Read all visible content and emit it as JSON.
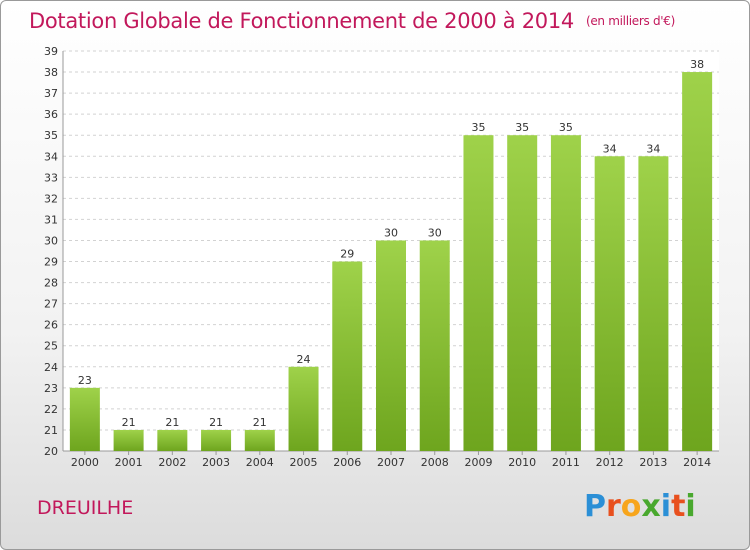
{
  "header": {
    "title": "Dotation Globale de Fonctionnement de 2000 à 2014",
    "unit": "(en milliers d'€)"
  },
  "footer": {
    "commune": "DREUILHE",
    "logo_letters": [
      "P",
      "r",
      "o",
      "x",
      "i",
      "t",
      "i"
    ],
    "logo_colors": [
      "#2b8fd6",
      "#e8501e",
      "#f7a51c",
      "#49a82e",
      "#2b8fd6",
      "#e8501e",
      "#49a82e"
    ]
  },
  "chart_data": {
    "type": "bar",
    "title": "Dotation Globale de Fonctionnement de 2000 à 2014",
    "categories": [
      "2000",
      "2001",
      "2002",
      "2003",
      "2004",
      "2005",
      "2006",
      "2007",
      "2008",
      "2009",
      "2010",
      "2011",
      "2012",
      "2013",
      "2014"
    ],
    "values": [
      23,
      21,
      21,
      21,
      21,
      24,
      29,
      30,
      30,
      35,
      35,
      35,
      34,
      34,
      38
    ],
    "ylim": [
      20,
      39
    ],
    "yticks": [
      20,
      21,
      22,
      23,
      24,
      25,
      26,
      27,
      28,
      29,
      30,
      31,
      32,
      33,
      34,
      35,
      36,
      37,
      38,
      39
    ],
    "grid": true,
    "bar_color": "#8cc43a",
    "xlabel": "",
    "ylabel": ""
  }
}
